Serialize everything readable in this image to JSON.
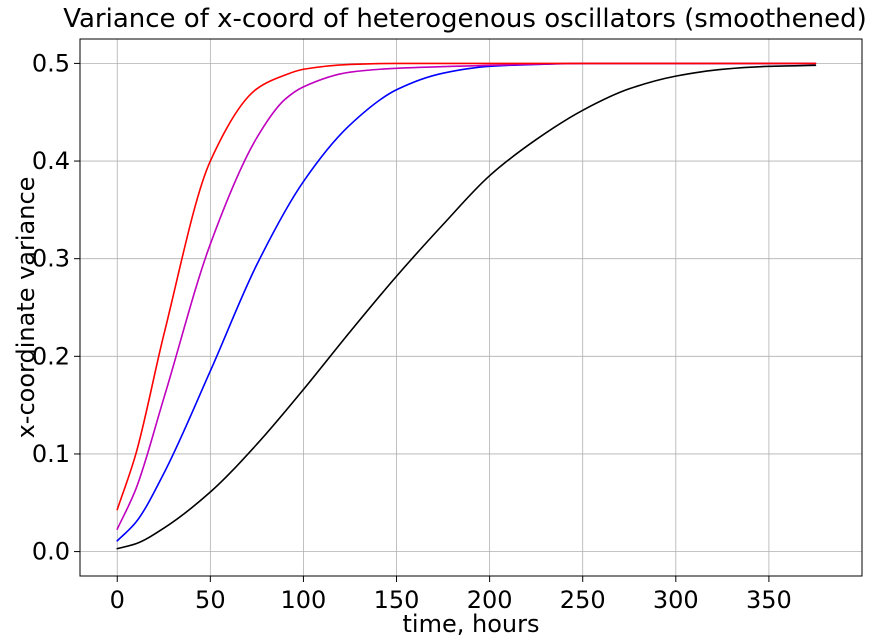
{
  "chart_data": {
    "type": "line",
    "title": "Variance of x-coord of heterogenous oscillators (smoothened)",
    "xlabel": "time, hours",
    "ylabel": "x-coordinate variance",
    "xlim": [
      -20,
      400
    ],
    "ylim": [
      -0.025,
      0.525
    ],
    "xticks": [
      0,
      50,
      100,
      150,
      200,
      250,
      300,
      350
    ],
    "xtick_labels": [
      "0",
      "50",
      "100",
      "150",
      "200",
      "250",
      "300",
      "350"
    ],
    "yticks": [
      0.0,
      0.1,
      0.2,
      0.3,
      0.4,
      0.5
    ],
    "ytick_labels": [
      "0.0",
      "0.1",
      "0.2",
      "0.3",
      "0.4",
      "0.5"
    ],
    "grid": true,
    "legend": "none",
    "series": [
      {
        "color": "#000000",
        "x": [
          0,
          10,
          25,
          50,
          75,
          100,
          125,
          150,
          175,
          200,
          225,
          250,
          275,
          300,
          325,
          350,
          375
        ],
        "y": [
          0.003,
          0.008,
          0.024,
          0.061,
          0.11,
          0.166,
          0.225,
          0.282,
          0.335,
          0.385,
          0.422,
          0.452,
          0.474,
          0.487,
          0.494,
          0.497,
          0.498
        ]
      },
      {
        "color": "#0000ff",
        "x": [
          0,
          10,
          25,
          50,
          75,
          100,
          125,
          150,
          175,
          200,
          225,
          250,
          300,
          350,
          375
        ],
        "y": [
          0.011,
          0.03,
          0.08,
          0.185,
          0.294,
          0.379,
          0.437,
          0.473,
          0.49,
          0.497,
          0.499,
          0.5,
          0.5,
          0.5,
          0.5
        ]
      },
      {
        "color": "#bf00bf",
        "x": [
          0,
          10,
          25,
          50,
          75,
          90,
          100,
          125,
          150,
          200,
          250,
          300,
          350,
          375
        ],
        "y": [
          0.023,
          0.064,
          0.157,
          0.315,
          0.424,
          0.463,
          0.476,
          0.491,
          0.495,
          0.498,
          0.5,
          0.5,
          0.5,
          0.5
        ]
      },
      {
        "color": "#ff0000",
        "x": [
          0,
          10,
          25,
          50,
          75,
          90,
          100,
          125,
          150,
          200,
          250,
          300,
          350,
          375
        ],
        "y": [
          0.043,
          0.1,
          0.222,
          0.4,
          0.474,
          0.488,
          0.494,
          0.499,
          0.5,
          0.5,
          0.5,
          0.5,
          0.5,
          0.5
        ]
      }
    ]
  }
}
